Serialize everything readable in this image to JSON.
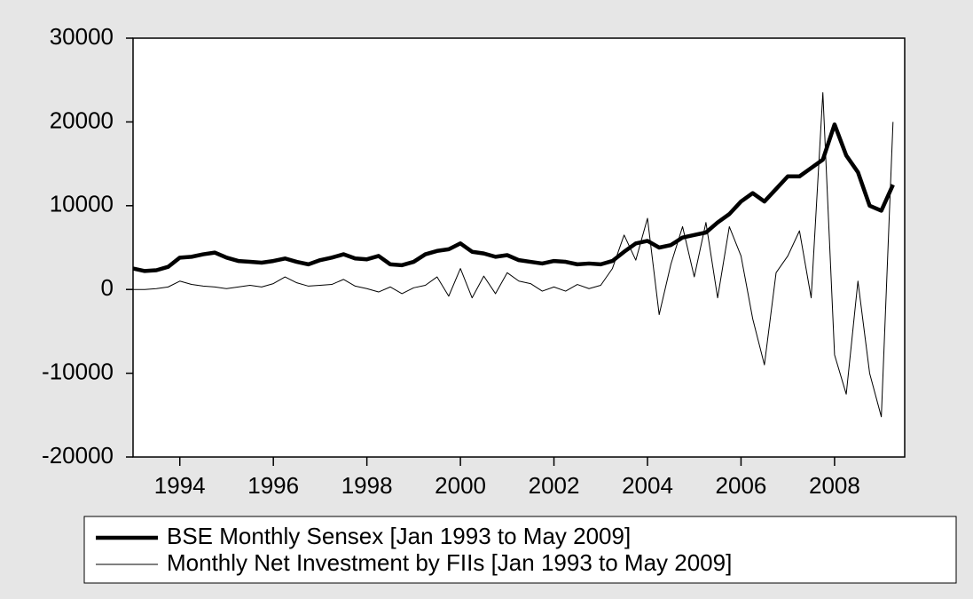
{
  "chart_data": {
    "type": "line",
    "x": [
      1993.0,
      1993.25,
      1993.5,
      1993.75,
      1994.0,
      1994.25,
      1994.5,
      1994.75,
      1995.0,
      1995.25,
      1995.5,
      1995.75,
      1996.0,
      1996.25,
      1996.5,
      1996.75,
      1997.0,
      1997.25,
      1997.5,
      1997.75,
      1998.0,
      1998.25,
      1998.5,
      1998.75,
      1999.0,
      1999.25,
      1999.5,
      1999.75,
      2000.0,
      2000.25,
      2000.5,
      2000.75,
      2001.0,
      2001.25,
      2001.5,
      2001.75,
      2002.0,
      2002.25,
      2002.5,
      2002.75,
      2003.0,
      2003.25,
      2003.5,
      2003.75,
      2004.0,
      2004.25,
      2004.5,
      2004.75,
      2005.0,
      2005.25,
      2005.5,
      2005.75,
      2006.0,
      2006.25,
      2006.5,
      2006.75,
      2007.0,
      2007.25,
      2007.5,
      2007.75,
      2008.0,
      2008.25,
      2008.5,
      2008.75,
      2009.0,
      2009.25
    ],
    "series": [
      {
        "name": "BSE Monthly Sensex [Jan 1993 to May 2009]",
        "color": "#000000",
        "line_width": 4.5,
        "values": [
          2500,
          2200,
          2300,
          2700,
          3800,
          3900,
          4200,
          4400,
          3800,
          3400,
          3300,
          3200,
          3400,
          3700,
          3300,
          3000,
          3500,
          3800,
          4200,
          3700,
          3600,
          4000,
          3000,
          2900,
          3300,
          4200,
          4600,
          4800,
          5500,
          4500,
          4300,
          3900,
          4100,
          3500,
          3300,
          3100,
          3400,
          3300,
          3000,
          3100,
          3000,
          3400,
          4500,
          5500,
          5800,
          5000,
          5300,
          6200,
          6500,
          6800,
          8000,
          9000,
          10500,
          11500,
          10500,
          12000,
          13500,
          13500,
          14500,
          15500,
          19700,
          16000,
          14000,
          10000,
          9400,
          12500
        ]
      },
      {
        "name": "Monthly Net Investment by FIIs [Jan 1993 to May 2009]",
        "color": "#000000",
        "line_width": 1,
        "values": [
          0,
          0,
          100,
          300,
          1000,
          600,
          400,
          300,
          100,
          300,
          500,
          300,
          700,
          1500,
          800,
          400,
          500,
          600,
          1200,
          400,
          100,
          -300,
          300,
          -500,
          200,
          500,
          1500,
          -800,
          2500,
          -1000,
          1600,
          -500,
          2000,
          1000,
          700,
          -200,
          300,
          -200,
          600,
          100,
          500,
          2500,
          6500,
          3500,
          8500,
          -3000,
          3000,
          7500,
          1500,
          8000,
          -1000,
          7500,
          4000,
          -3500,
          -9000,
          2000,
          4000,
          7000,
          -1000,
          23500,
          -7800,
          -12500,
          1000,
          -10000,
          -15200,
          20000
        ]
      }
    ],
    "xlim": [
      1993.0,
      2009.5
    ],
    "xticks": [
      1994,
      1996,
      1998,
      2000,
      2002,
      2004,
      2006,
      2008
    ],
    "ylim": [
      -20000,
      30000
    ],
    "yticks": [
      -20000,
      -10000,
      0,
      10000,
      20000,
      30000
    ],
    "grid": false,
    "legend": "bottom"
  }
}
